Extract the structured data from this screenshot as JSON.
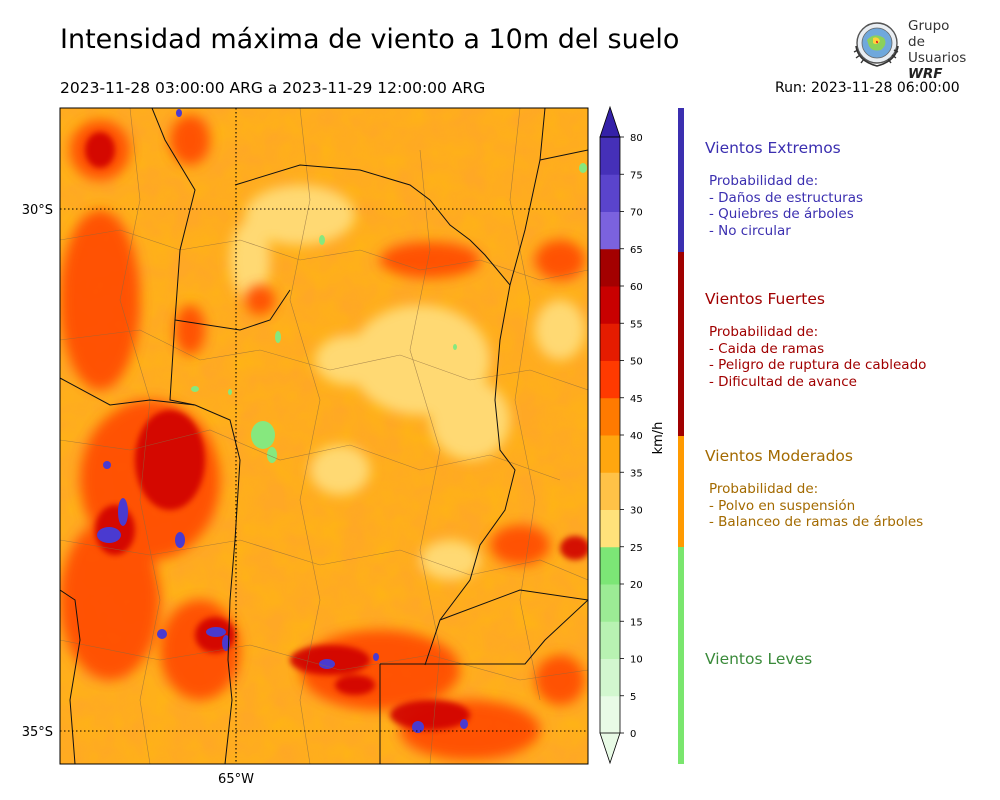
{
  "header": {
    "title": "Intensidad máxima de viento a 10m del suelo",
    "date_range": "2023-11-28 03:00:00 ARG  a  2023-11-29 12:00:00 ARG",
    "run": "Run: 2023-11-28 06:00:00"
  },
  "logo": {
    "line1": "Grupo de",
    "line2": "Usuarios",
    "line3": "WRF"
  },
  "map": {
    "lat_labels": [
      "30°S",
      "35°S"
    ],
    "lon_labels": [
      "65°W"
    ]
  },
  "colorbar": {
    "unit": "km/h",
    "ticks": [
      "0",
      "5",
      "10",
      "15",
      "20",
      "25",
      "30",
      "35",
      "40",
      "45",
      "50",
      "55",
      "60",
      "65",
      "70",
      "75",
      "80"
    ],
    "colors": [
      "#e8fbe6",
      "#d2f7cf",
      "#b8f2b2",
      "#9cec95",
      "#7ce676",
      "#ffe27a",
      "#ffc247",
      "#ffa60f",
      "#ff7a00",
      "#ff3a00",
      "#e51c00",
      "#c80000",
      "#a30000",
      "#7b62de",
      "#5a44cc",
      "#4530b8",
      "#3421a8"
    ]
  },
  "legend": [
    {
      "title": "Vientos Extremos",
      "color": "#3b2fb0",
      "lines": [
        "Probabilidad de:",
        "- Daños de estructuras",
        "- Quiebres de árboles",
        "- No circular"
      ]
    },
    {
      "title": "Vientos Fuertes",
      "color": "#a00000",
      "lines": [
        "Probabilidad de:",
        "- Caida de ramas",
        "- Peligro de ruptura de cableado",
        "- Dificultad de avance"
      ]
    },
    {
      "title": "Vientos Moderados",
      "color": "#a36a00",
      "lines": [
        "Probabilidad de:",
        "- Polvo en suspensión",
        "- Balanceo de ramas de árboles"
      ]
    },
    {
      "title": "Vientos Leves",
      "color": "#3a8a3a",
      "lines": []
    }
  ]
}
